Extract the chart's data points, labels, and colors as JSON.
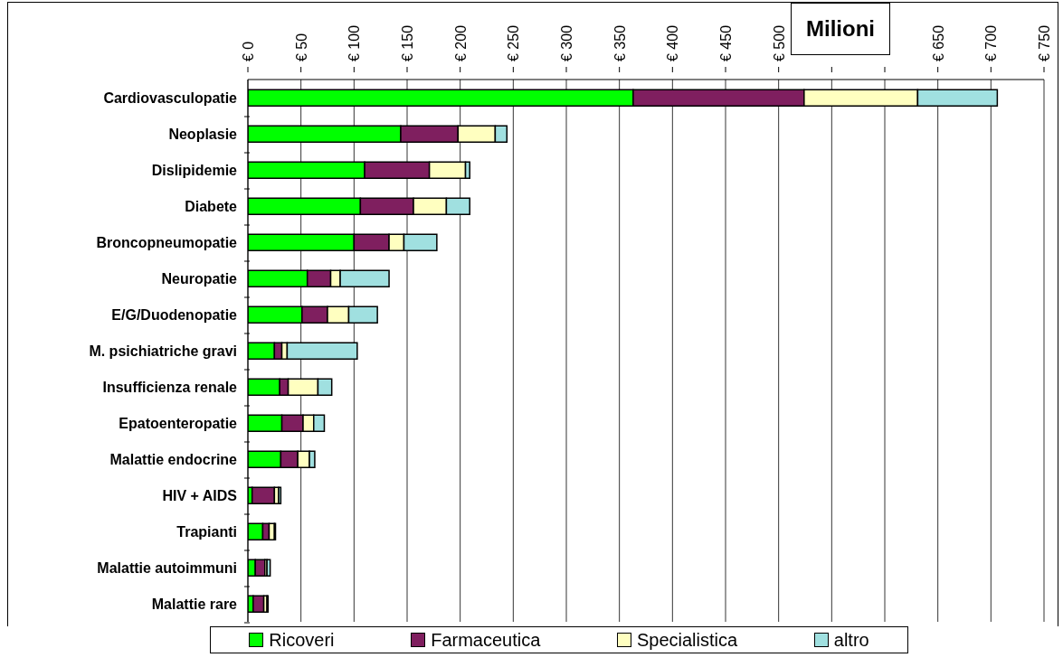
{
  "chart_data": {
    "type": "bar",
    "orientation": "horizontal",
    "stacked": true,
    "categories": [
      "Cardiovasculopatie",
      "Neoplasie",
      "Dislipidemie",
      "Diabete",
      "Broncopneumopatie",
      "Neuropatie",
      "E/G/Duodenopatie",
      "M. psichiatriche gravi",
      "Insufficienza renale",
      "Epatoenteropatie",
      "Malattie endocrine",
      "HIV + AIDS",
      "Trapianti",
      "Malattie autoimmuni",
      "Malattie rare"
    ],
    "series": [
      {
        "name": "Ricoveri",
        "color": "#00ff00",
        "values": [
          363,
          144,
          110,
          106,
          100,
          56,
          51,
          25,
          30,
          32,
          31,
          4,
          14,
          7,
          5
        ]
      },
      {
        "name": "Farmaceutica",
        "color": "#7f1f5f",
        "values": [
          161,
          54,
          61,
          50,
          33,
          22,
          24,
          7,
          8,
          20,
          16,
          21,
          6,
          9,
          10
        ]
      },
      {
        "name": "Specialistica",
        "color": "#ffffc0",
        "values": [
          107,
          35,
          34,
          31,
          14,
          9,
          20,
          5,
          28,
          10,
          11,
          4,
          5,
          2,
          3
        ]
      },
      {
        "name": "altro",
        "color": "#a0e0e0",
        "values": [
          75,
          11,
          4,
          22,
          31,
          46,
          27,
          66,
          13,
          10,
          5,
          2,
          1,
          3,
          1
        ]
      }
    ],
    "xlim": [
      0,
      750
    ],
    "xticks": [
      {
        "value": 0,
        "label": "€ 0"
      },
      {
        "value": 50,
        "label": "€ 50"
      },
      {
        "value": 100,
        "label": "€ 100"
      },
      {
        "value": 150,
        "label": "€ 150"
      },
      {
        "value": 200,
        "label": "€ 200"
      },
      {
        "value": 250,
        "label": "€ 250"
      },
      {
        "value": 300,
        "label": "€ 300"
      },
      {
        "value": 350,
        "label": "€ 350"
      },
      {
        "value": 400,
        "label": "€ 400"
      },
      {
        "value": 450,
        "label": "€ 450"
      },
      {
        "value": 500,
        "label": "€ 500"
      },
      {
        "value": 550,
        "label": null
      },
      {
        "value": 600,
        "label": null
      },
      {
        "value": 650,
        "label": "€ 650"
      },
      {
        "value": 700,
        "label": "€ 700"
      },
      {
        "value": 750,
        "label": "€ 750"
      }
    ],
    "annotations": [
      "Milioni"
    ],
    "grid": "x",
    "legend": "bottom"
  }
}
